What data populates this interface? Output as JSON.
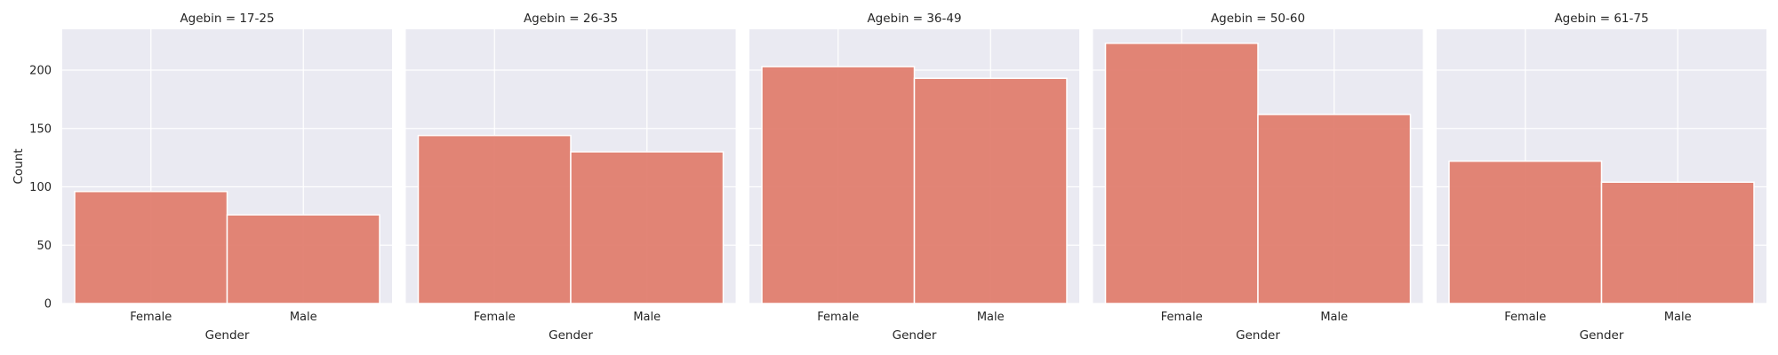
{
  "chart_data": {
    "type": "bar",
    "facet_variable": "Agebin",
    "categories": [
      "Female",
      "Male"
    ],
    "panels": [
      {
        "title": "Agebin = 17-25",
        "values": [
          96,
          76
        ]
      },
      {
        "title": "Agebin = 26-35",
        "values": [
          144,
          130
        ]
      },
      {
        "title": "Agebin = 36-49",
        "values": [
          203,
          193
        ]
      },
      {
        "title": "Agebin = 50-60",
        "values": [
          223,
          162
        ]
      },
      {
        "title": "Agebin = 61-75",
        "values": [
          122,
          104
        ]
      }
    ],
    "xlabel": "Gender",
    "ylabel": "Count",
    "ylim": [
      0,
      235
    ],
    "yticks": [
      0,
      50,
      100,
      150,
      200
    ],
    "grid": true,
    "colors": {
      "bar": "#e07b6a",
      "background": "#eaeaf2",
      "grid": "#ffffff"
    }
  }
}
